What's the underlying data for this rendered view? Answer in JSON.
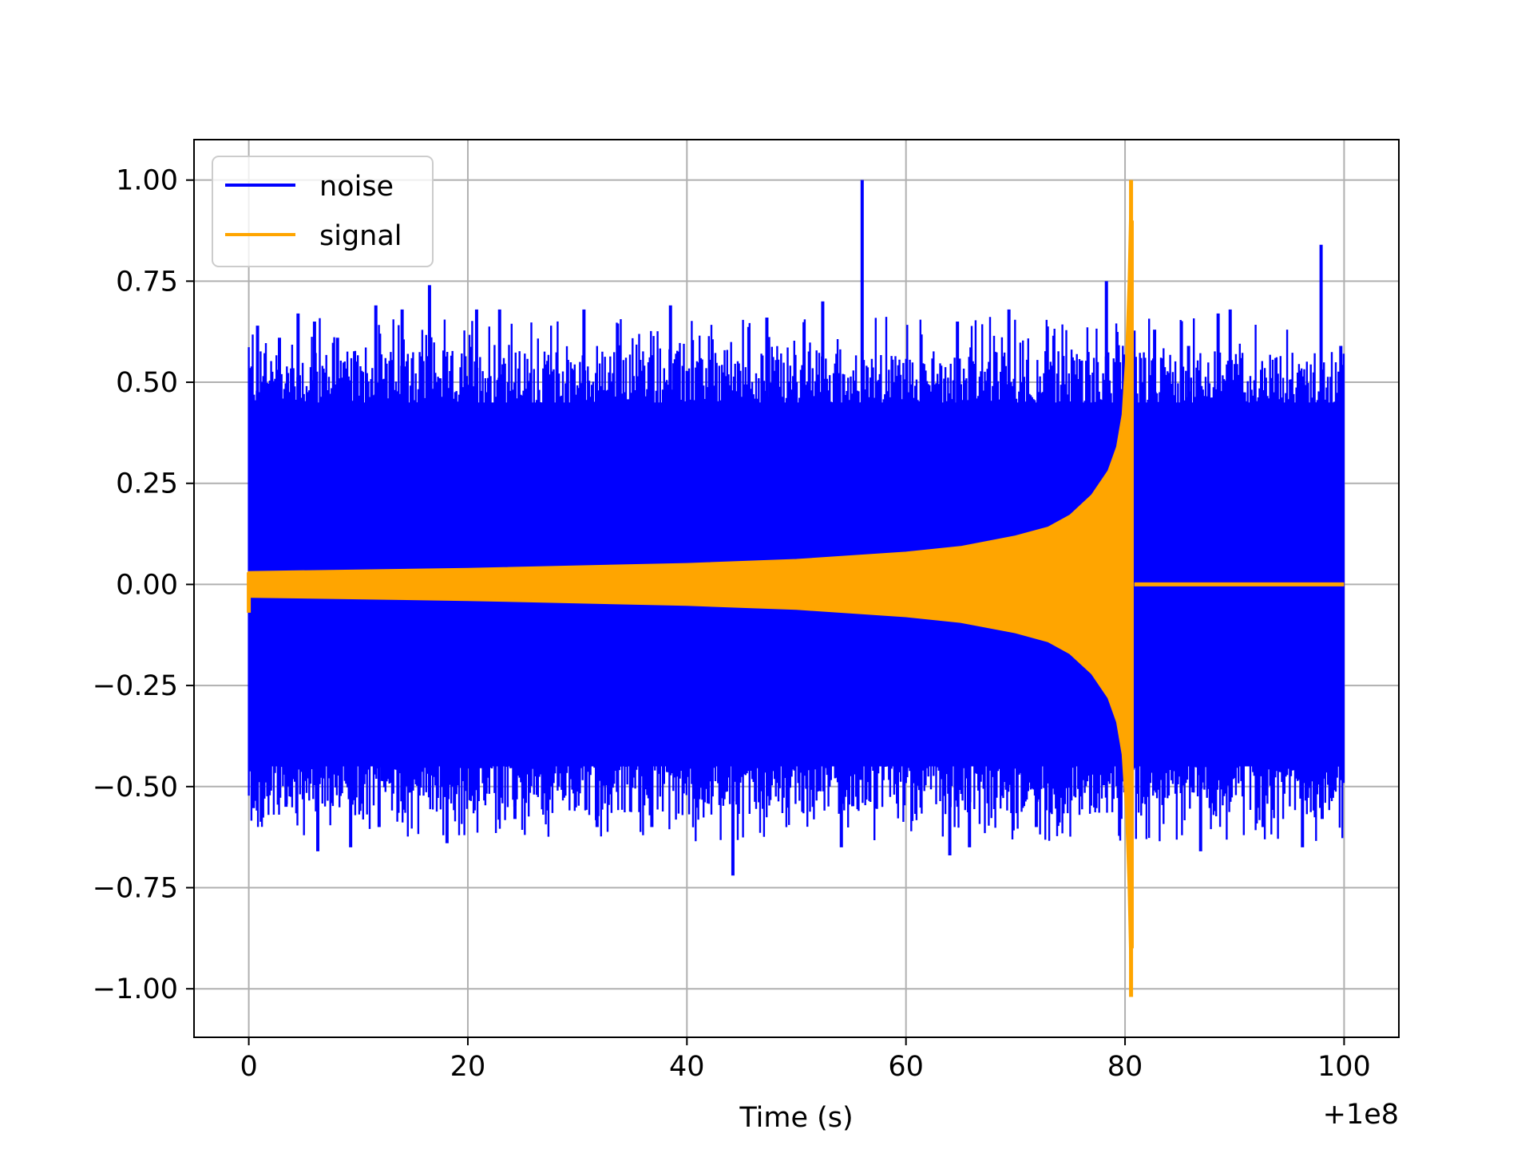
{
  "chart_data": {
    "type": "line",
    "title": "",
    "xlabel": "Time (s)",
    "ylabel": "",
    "x_offset_label": "+1e8",
    "xlim": [
      -5,
      105
    ],
    "ylim": [
      -1.12,
      1.1
    ],
    "grid": true,
    "legend": {
      "placement": "top-left"
    },
    "xticks": [
      {
        "value": 0,
        "label": "0"
      },
      {
        "value": 20,
        "label": "20"
      },
      {
        "value": 40,
        "label": "40"
      },
      {
        "value": 60,
        "label": "60"
      },
      {
        "value": 80,
        "label": "80"
      },
      {
        "value": 100,
        "label": "100"
      }
    ],
    "yticks": [
      {
        "value": 1.0,
        "label": "1.00"
      },
      {
        "value": 0.75,
        "label": "0.75"
      },
      {
        "value": 0.5,
        "label": "0.50"
      },
      {
        "value": 0.25,
        "label": "0.25"
      },
      {
        "value": 0.0,
        "label": "0.00"
      },
      {
        "value": -0.25,
        "label": "−0.25"
      },
      {
        "value": -0.5,
        "label": "−0.50"
      },
      {
        "value": -0.75,
        "label": "−0.75"
      },
      {
        "value": -1.0,
        "label": "−1.00"
      }
    ],
    "series": [
      {
        "name": "noise",
        "color": "#0000ff",
        "x_range": [
          0,
          100
        ],
        "band_upper": 0.45,
        "band_lower": -0.45,
        "spikes": [
          {
            "x": 0.8,
            "y": 0.64
          },
          {
            "x": 1.2,
            "y": -0.56
          },
          {
            "x": 2.8,
            "y": 0.61
          },
          {
            "x": 3.4,
            "y": -0.55
          },
          {
            "x": 4.5,
            "y": 0.67
          },
          {
            "x": 6.0,
            "y": 0.65
          },
          {
            "x": 6.3,
            "y": -0.66
          },
          {
            "x": 8.1,
            "y": 0.61
          },
          {
            "x": 9.3,
            "y": -0.65
          },
          {
            "x": 11.6,
            "y": 0.69
          },
          {
            "x": 11.9,
            "y": -0.6
          },
          {
            "x": 14.0,
            "y": 0.68
          },
          {
            "x": 16.5,
            "y": 0.74
          },
          {
            "x": 18.1,
            "y": -0.64
          },
          {
            "x": 20.8,
            "y": 0.68
          },
          {
            "x": 22.9,
            "y": 0.68
          },
          {
            "x": 24.3,
            "y": -0.58
          },
          {
            "x": 30.6,
            "y": 0.68
          },
          {
            "x": 31.8,
            "y": -0.6
          },
          {
            "x": 36.8,
            "y": -0.6
          },
          {
            "x": 38.5,
            "y": 0.69
          },
          {
            "x": 44.2,
            "y": -0.72
          },
          {
            "x": 47.3,
            "y": 0.66
          },
          {
            "x": 52.4,
            "y": 0.7
          },
          {
            "x": 54.1,
            "y": -0.65
          },
          {
            "x": 56.0,
            "y": 1.0
          },
          {
            "x": 64.0,
            "y": -0.67
          },
          {
            "x": 64.7,
            "y": 0.65
          },
          {
            "x": 65.8,
            "y": -0.65
          },
          {
            "x": 69.4,
            "y": 0.68
          },
          {
            "x": 71.9,
            "y": -0.6
          },
          {
            "x": 78.3,
            "y": 0.75
          },
          {
            "x": 82.7,
            "y": 0.63
          },
          {
            "x": 85.8,
            "y": 0.59
          },
          {
            "x": 86.9,
            "y": -0.66
          },
          {
            "x": 88.5,
            "y": 0.67
          },
          {
            "x": 89.6,
            "y": 0.68
          },
          {
            "x": 92.6,
            "y": -0.6
          },
          {
            "x": 96.2,
            "y": -0.65
          },
          {
            "x": 97.9,
            "y": 0.84
          },
          {
            "x": 98.0,
            "y": -0.58
          },
          {
            "x": 99.7,
            "y": 0.59
          }
        ]
      },
      {
        "name": "signal",
        "color": "#ffa500",
        "x_range": [
          0,
          100
        ],
        "merger_time": 80.6,
        "envelope": [
          {
            "x": 0,
            "y": 0.03
          },
          {
            "x": 20,
            "y": 0.038
          },
          {
            "x": 40,
            "y": 0.05
          },
          {
            "x": 50,
            "y": 0.06
          },
          {
            "x": 60,
            "y": 0.078
          },
          {
            "x": 65,
            "y": 0.092
          },
          {
            "x": 70,
            "y": 0.118
          },
          {
            "x": 73,
            "y": 0.14
          },
          {
            "x": 75,
            "y": 0.17
          },
          {
            "x": 77,
            "y": 0.22
          },
          {
            "x": 78.5,
            "y": 0.28
          },
          {
            "x": 79.3,
            "y": 0.34
          },
          {
            "x": 79.8,
            "y": 0.42
          },
          {
            "x": 80.1,
            "y": 0.55
          },
          {
            "x": 80.35,
            "y": 0.75
          },
          {
            "x": 80.55,
            "y": 1.0
          }
        ],
        "min_value": -1.02,
        "start_dip": -0.07,
        "after_merger": 0.0
      }
    ]
  }
}
